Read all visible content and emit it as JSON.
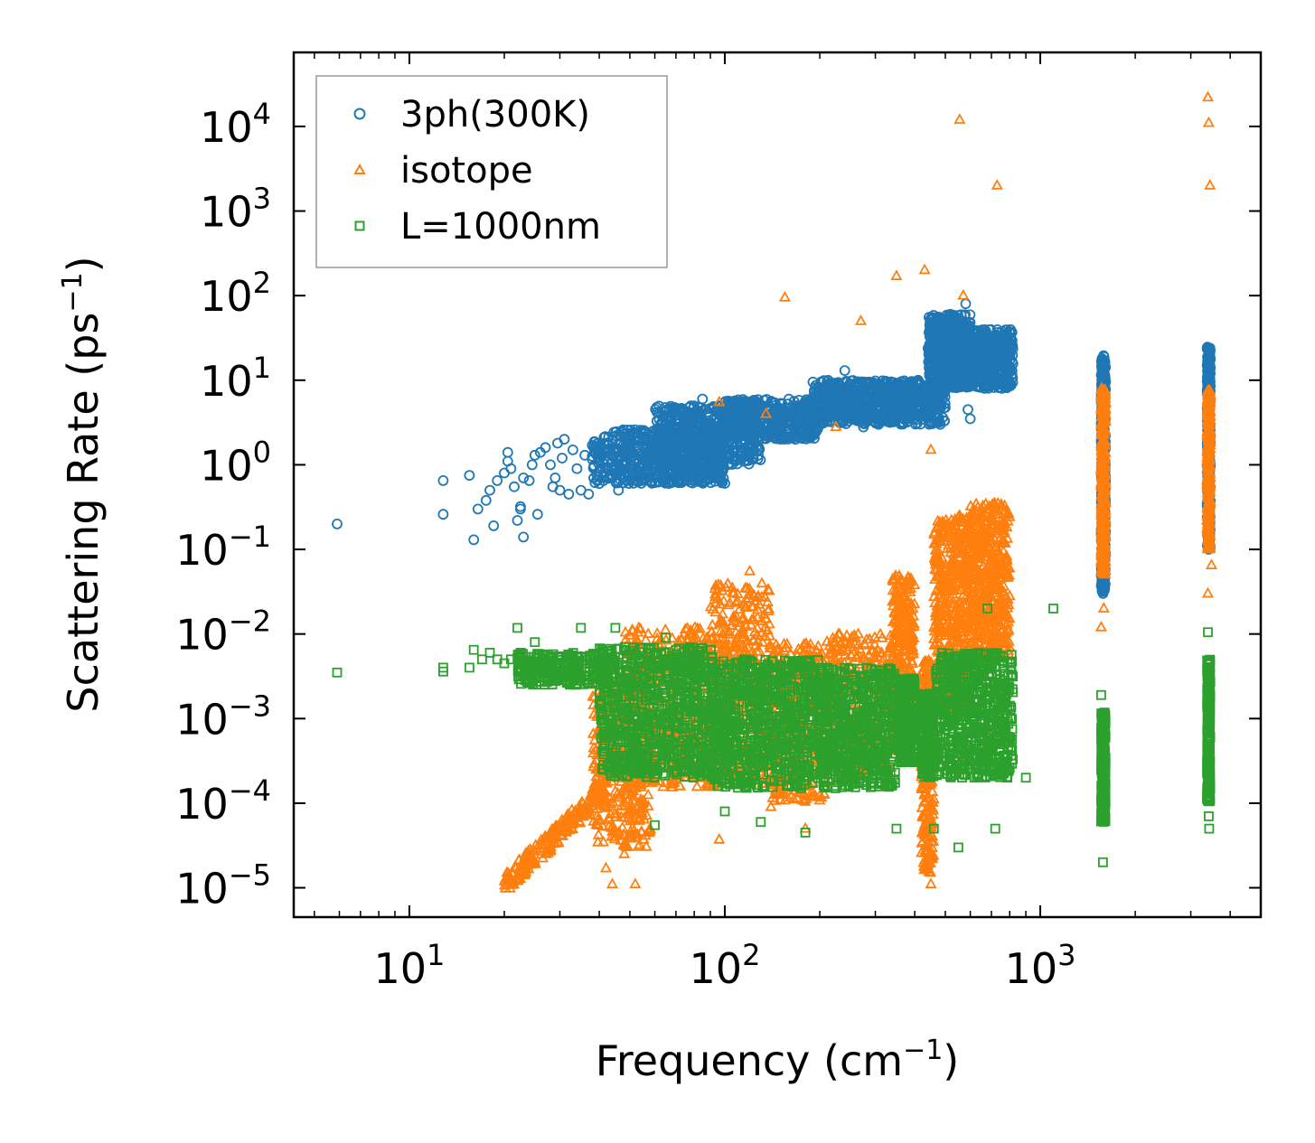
{
  "chart_data": {
    "type": "scatter",
    "title": "",
    "xlabel": "Frequency (cm",
    "xlabel_sup": "−1",
    "xlabel_close": ")",
    "ylabel": "Scattering Rate (ps",
    "ylabel_sup": "−1",
    "ylabel_close": ")",
    "xscale": "log",
    "yscale": "log",
    "xlim": [
      4.3,
      5000
    ],
    "ylim": [
      4.5e-06,
      75000
    ],
    "x_ticks": [
      {
        "value": 10,
        "base": "10",
        "exp": "1"
      },
      {
        "value": 100,
        "base": "10",
        "exp": "2"
      },
      {
        "value": 1000,
        "base": "10",
        "exp": "3"
      }
    ],
    "y_ticks": [
      {
        "value": 1e-05,
        "base": "10",
        "exp": "−5"
      },
      {
        "value": 0.0001,
        "base": "10",
        "exp": "−4"
      },
      {
        "value": 0.001,
        "base": "10",
        "exp": "−3"
      },
      {
        "value": 0.01,
        "base": "10",
        "exp": "−2"
      },
      {
        "value": 0.1,
        "base": "10",
        "exp": "−1"
      },
      {
        "value": 1,
        "base": "10",
        "exp": "0"
      },
      {
        "value": 10,
        "base": "10",
        "exp": "1"
      },
      {
        "value": 100,
        "base": "10",
        "exp": "2"
      },
      {
        "value": 1000,
        "base": "10",
        "exp": "3"
      },
      {
        "value": 10000,
        "base": "10",
        "exp": "4"
      }
    ],
    "legend_position": "top-left",
    "series": [
      {
        "name": "3ph(300K)",
        "marker": "circle",
        "color": "#1f77b4",
        "points": [
          [
            5.9,
            0.2
          ],
          [
            12.8,
            0.65
          ],
          [
            12.8,
            0.26
          ],
          [
            15.5,
            0.75
          ],
          [
            16,
            0.13
          ],
          [
            16.5,
            0.3
          ],
          [
            17.5,
            0.38
          ],
          [
            18,
            0.5
          ],
          [
            18.5,
            0.19
          ],
          [
            19,
            0.65
          ],
          [
            20,
            0.8
          ],
          [
            20.5,
            1.4
          ],
          [
            20.5,
            1.1
          ],
          [
            21,
            0.9
          ],
          [
            21.5,
            0.55
          ],
          [
            22,
            0.22
          ],
          [
            22.5,
            0.32
          ],
          [
            22.5,
            0.3
          ],
          [
            23,
            0.14
          ],
          [
            23,
            0.7
          ],
          [
            24,
            0.65
          ],
          [
            24.5,
            1.0
          ],
          [
            25,
            1.3
          ],
          [
            25.5,
            0.26
          ],
          [
            26,
            1.4
          ],
          [
            27,
            1.6
          ],
          [
            28,
            1.0
          ],
          [
            28.5,
            0.55
          ],
          [
            29,
            0.7
          ],
          [
            29.5,
            1.8
          ],
          [
            30,
            0.5
          ],
          [
            30.5,
            1.2
          ],
          [
            31,
            2.0
          ],
          [
            32,
            0.45
          ],
          [
            33,
            1.5
          ],
          [
            34,
            0.9
          ],
          [
            35,
            0.5
          ],
          [
            36,
            1.3
          ],
          [
            37,
            0.45
          ],
          [
            38,
            1.7
          ],
          [
            40,
            0.6
          ],
          [
            42,
            0.9
          ],
          [
            44,
            0.7
          ],
          [
            46,
            0.5
          ],
          [
            48,
            1.1
          ],
          [
            50,
            0.75
          ],
          [
            55,
            1.3
          ],
          [
            60,
            0.9
          ],
          [
            62,
            1.1
          ],
          [
            65,
            0.75
          ],
          [
            70,
            1.4
          ],
          [
            80,
            1.7
          ],
          [
            85,
            6.0
          ],
          [
            88,
            2.5
          ],
          [
            90,
            1.2
          ],
          [
            100,
            2.3
          ],
          [
            105,
            5.0
          ],
          [
            110,
            4.2
          ],
          [
            115,
            5.5
          ],
          [
            120,
            1.8
          ],
          [
            135,
            4.8
          ],
          [
            150,
            3.5
          ],
          [
            170,
            5.0
          ],
          [
            200,
            7.0
          ],
          [
            210,
            4.0
          ],
          [
            225,
            5.5
          ],
          [
            240,
            13.0
          ],
          [
            260,
            9.0
          ],
          [
            275,
            2.8
          ],
          [
            290,
            5.5
          ],
          [
            310,
            8.5
          ],
          [
            350,
            6.0
          ],
          [
            380,
            3.8
          ],
          [
            410,
            10.0
          ],
          [
            440,
            7.0
          ],
          [
            470,
            12.0
          ],
          [
            500,
            30.0
          ],
          [
            520,
            60.0
          ],
          [
            560,
            45.0
          ],
          [
            580,
            80.0
          ],
          [
            590,
            4.5
          ],
          [
            600,
            3.5
          ],
          [
            640,
            15.0
          ],
          [
            700,
            30.0
          ],
          [
            730,
            10.0
          ],
          [
            780,
            25.0
          ],
          [
            800,
            17.0
          ]
        ],
        "clusters": [
          {
            "x_range": [
              38,
              100
            ],
            "y_range": [
              0.6,
              2.6
            ],
            "count": 600
          },
          {
            "x_range": [
              60,
              130
            ],
            "y_range": [
              1.0,
              5.0
            ],
            "count": 500
          },
          {
            "x_range": [
              100,
              200
            ],
            "y_range": [
              2.0,
              6.0
            ],
            "count": 400
          },
          {
            "x_range": [
              190,
              500
            ],
            "y_range": [
              3.0,
              10.0
            ],
            "count": 700
          },
          {
            "x_range": [
              440,
              600
            ],
            "y_range": [
              8.0,
              60.0
            ],
            "count": 500
          },
          {
            "x_range": [
              560,
              820
            ],
            "y_range": [
              8.0,
              40.0
            ],
            "count": 500
          },
          {
            "x_range": [
              1560,
              1610
            ],
            "y_range": [
              0.03,
              20.0
            ],
            "count": 400
          },
          {
            "x_range": [
              3380,
              3460
            ],
            "y_range": [
              0.1,
              25.0
            ],
            "count": 300
          }
        ]
      },
      {
        "name": "isotope",
        "marker": "triangle",
        "color": "#ff7f0e",
        "points": [
          [
            555,
            12000
          ],
          [
            730,
            2000
          ],
          [
            3400,
            22000
          ],
          [
            3420,
            11000
          ],
          [
            3450,
            2000
          ],
          [
            350,
            170
          ],
          [
            430,
            200
          ],
          [
            155,
            95
          ],
          [
            270,
            50
          ],
          [
            570,
            100
          ],
          [
            96,
            5.5
          ],
          [
            135,
            4.0
          ],
          [
            225,
            2.8
          ],
          [
            450,
            1.5
          ],
          [
            1560,
            0.012
          ],
          [
            3400,
            0.03
          ],
          [
            3490,
            0.065
          ],
          [
            1590,
            0.02
          ],
          [
            120,
            0.055
          ],
          [
            21,
            1.1e-05
          ],
          [
            22,
            1.2e-05
          ],
          [
            23,
            1.5e-05
          ],
          [
            25,
            2e-05
          ],
          [
            28,
            3e-05
          ],
          [
            32,
            5e-05
          ],
          [
            36,
            8e-05
          ],
          [
            40,
            0.00012
          ],
          [
            42,
            1.7e-05
          ],
          [
            44,
            1.1e-05
          ],
          [
            48,
            2.5e-05
          ],
          [
            52,
            1.1e-05
          ],
          [
            96,
            3.7e-05
          ],
          [
            140,
            9e-05
          ],
          [
            180,
            5e-05
          ],
          [
            450,
            1.1e-05
          ]
        ],
        "clusters": [
          {
            "x_range": [
              20,
              42
            ],
            "y_range": [
              1.1e-05,
              0.00015
            ],
            "count": 250,
            "trend": true
          },
          {
            "x_range": [
              38,
              58
            ],
            "y_range": [
              3e-05,
              0.003
            ],
            "count": 400
          },
          {
            "x_range": [
              48,
              95
            ],
            "y_range": [
              0.00015,
              0.012
            ],
            "count": 500
          },
          {
            "x_range": [
              90,
              140
            ],
            "y_range": [
              0.00015,
              0.04
            ],
            "count": 400
          },
          {
            "x_range": [
              140,
              210
            ],
            "y_range": [
              0.0001,
              0.008
            ],
            "count": 350
          },
          {
            "x_range": [
              210,
              340
            ],
            "y_range": [
              0.0002,
              0.01
            ],
            "count": 350
          },
          {
            "x_range": [
              340,
              400
            ],
            "y_range": [
              0.0005,
              0.05
            ],
            "count": 350
          },
          {
            "x_range": [
              420,
              460
            ],
            "y_range": [
              1.5e-05,
              0.005
            ],
            "count": 250
          },
          {
            "x_range": [
              460,
              600
            ],
            "y_range": [
              0.001,
              0.25
            ],
            "count": 500
          },
          {
            "x_range": [
              600,
              800
            ],
            "y_range": [
              0.005,
              0.35
            ],
            "count": 500
          },
          {
            "x_range": [
              1560,
              1610
            ],
            "y_range": [
              0.05,
              8.0
            ],
            "count": 400
          },
          {
            "x_range": [
              3380,
              3460
            ],
            "y_range": [
              0.1,
              8.0
            ],
            "count": 300
          }
        ]
      },
      {
        "name": "L=1000nm",
        "marker": "square",
        "color": "#2ca02c",
        "points": [
          [
            5.9,
            0.0035
          ],
          [
            12.8,
            0.004
          ],
          [
            12.8,
            0.0036
          ],
          [
            15.5,
            0.004
          ],
          [
            16,
            0.0065
          ],
          [
            17,
            0.005
          ],
          [
            18,
            0.006
          ],
          [
            19,
            0.005
          ],
          [
            20,
            0.0045
          ],
          [
            21,
            0.005
          ],
          [
            22,
            0.0118
          ],
          [
            22.5,
            0.006
          ],
          [
            25,
            0.008
          ],
          [
            27,
            0.005
          ],
          [
            30,
            0.0045
          ],
          [
            35,
            0.0118
          ],
          [
            40,
            0.004
          ],
          [
            45,
            0.0118
          ],
          [
            60,
            0.006
          ],
          [
            65,
            0.009
          ],
          [
            900,
            0.0002
          ],
          [
            1560,
            0.0019
          ],
          [
            1580,
            2e-05
          ],
          [
            3400,
            0.0105
          ],
          [
            3420,
            7e-05
          ],
          [
            3430,
            5e-05
          ],
          [
            1100,
            0.02
          ],
          [
            680,
            0.02
          ],
          [
            60,
            5.5e-05
          ],
          [
            100,
            8e-05
          ],
          [
            130,
            6e-05
          ],
          [
            180,
            4.5e-05
          ],
          [
            350,
            5e-05
          ],
          [
            460,
            5e-05
          ],
          [
            550,
            3e-05
          ],
          [
            720,
            5e-05
          ]
        ],
        "clusters": [
          {
            "x_range": [
              22,
              45
            ],
            "y_range": [
              0.0025,
              0.006
            ],
            "count": 300
          },
          {
            "x_range": [
              40,
              95
            ],
            "y_range": [
              0.0002,
              0.007
            ],
            "count": 800
          },
          {
            "x_range": [
              90,
              200
            ],
            "y_range": [
              0.00015,
              0.005
            ],
            "count": 800
          },
          {
            "x_range": [
              200,
              350
            ],
            "y_range": [
              0.00015,
              0.004
            ],
            "count": 600
          },
          {
            "x_range": [
              355,
              400
            ],
            "y_range": [
              0.0003,
              0.003
            ],
            "count": 250
          },
          {
            "x_range": [
              420,
              460
            ],
            "y_range": [
              0.0002,
              0.002
            ],
            "count": 200
          },
          {
            "x_range": [
              460,
              820
            ],
            "y_range": [
              0.0002,
              0.006
            ],
            "count": 700
          },
          {
            "x_range": [
              1560,
              1610
            ],
            "y_range": [
              6e-05,
              0.0012
            ],
            "count": 300
          },
          {
            "x_range": [
              3380,
              3460
            ],
            "y_range": [
              0.0001,
              0.005
            ],
            "count": 300
          }
        ]
      }
    ]
  }
}
